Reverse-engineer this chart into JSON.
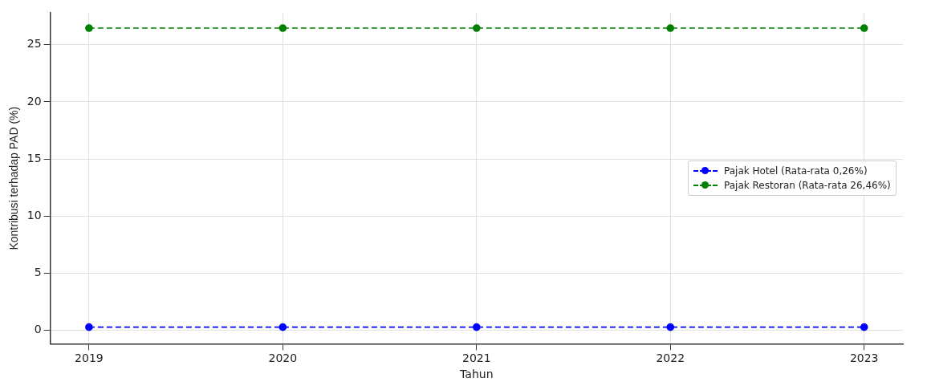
{
  "chart_data": {
    "type": "line",
    "xlabel": "Tahun",
    "ylabel": "Kontribusi terhadap PAD (%)",
    "x": [
      2019,
      2020,
      2021,
      2022,
      2023
    ],
    "series": [
      {
        "name": "Pajak Hotel (Rata-rata 0,26%)",
        "color": "#0000ff",
        "values": [
          0.26,
          0.26,
          0.26,
          0.26,
          0.26
        ]
      },
      {
        "name": "Pajak Restoran (Rata-rata 26,46%)",
        "color": "#008000",
        "values": [
          26.46,
          26.46,
          26.46,
          26.46,
          26.46
        ]
      }
    ],
    "xlim": [
      2018.8,
      2023.2
    ],
    "xticks": [
      2019,
      2020,
      2021,
      2022,
      2023
    ],
    "ylim": [
      -1.2,
      27.8
    ],
    "yticks": [
      0,
      5,
      10,
      15,
      20,
      25
    ],
    "grid": true,
    "legend": "right",
    "marker": "circle",
    "line_style": "dashed"
  }
}
